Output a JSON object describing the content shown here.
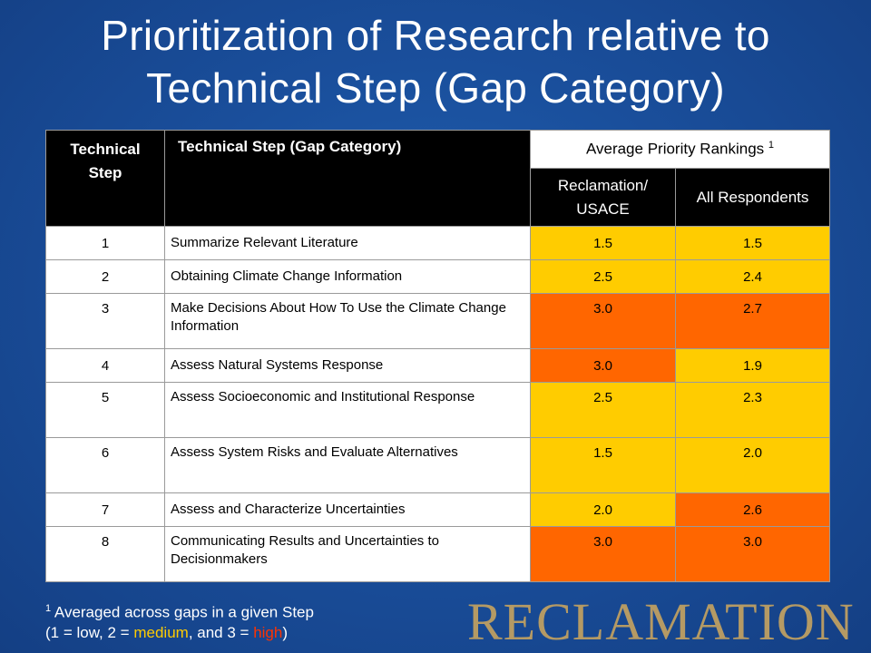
{
  "title": {
    "line1": "Prioritization of Research relative to",
    "line2": "Technical Step (Gap Category)"
  },
  "table": {
    "headers": {
      "step": "Technical Step",
      "category": "Technical Step (Gap Category)",
      "avg": "Average Priority Rankings",
      "avg_sup": "1",
      "reclamation": "Reclamation/ USACE",
      "all": "All Respondents"
    },
    "rows": [
      {
        "step": "1",
        "category": "Summarize Relevant Literature",
        "reclamation": "1.5",
        "all": "1.5"
      },
      {
        "step": "2",
        "category": "Obtaining Climate Change Information",
        "reclamation": "2.5",
        "all": "2.4"
      },
      {
        "step": "3",
        "category": "Make Decisions About How To Use the Climate Change Information",
        "reclamation": "3.0",
        "all": "2.7"
      },
      {
        "step": "4",
        "category": "Assess Natural Systems Response",
        "reclamation": "3.0",
        "all": "1.9"
      },
      {
        "step": "5",
        "category": "Assess Socioeconomic and Institutional Response",
        "reclamation": "2.5",
        "all": "2.3"
      },
      {
        "step": "6",
        "category": "Assess System Risks and Evaluate Alternatives",
        "reclamation": "1.5",
        "all": "2.0"
      },
      {
        "step": "7",
        "category": "Assess and Characterize Uncertainties",
        "reclamation": "2.0",
        "all": "2.6"
      },
      {
        "step": "8",
        "category": "Communicating Results and Uncertainties to Decisionmakers",
        "reclamation": "3.0",
        "all": "3.0"
      }
    ]
  },
  "footnote": {
    "sup": "1",
    "line1": " Averaged across gaps in a given Step",
    "line2_start": "(1 = low, 2 = ",
    "medium": "medium",
    "middle": ", and 3 = ",
    "high": "high",
    "end": ")"
  },
  "logo": "RECLAMATION",
  "colors": {
    "low_medium": "#ffcc00",
    "high": "#ff6600",
    "header": "#000000",
    "logo": "#b59a64"
  }
}
